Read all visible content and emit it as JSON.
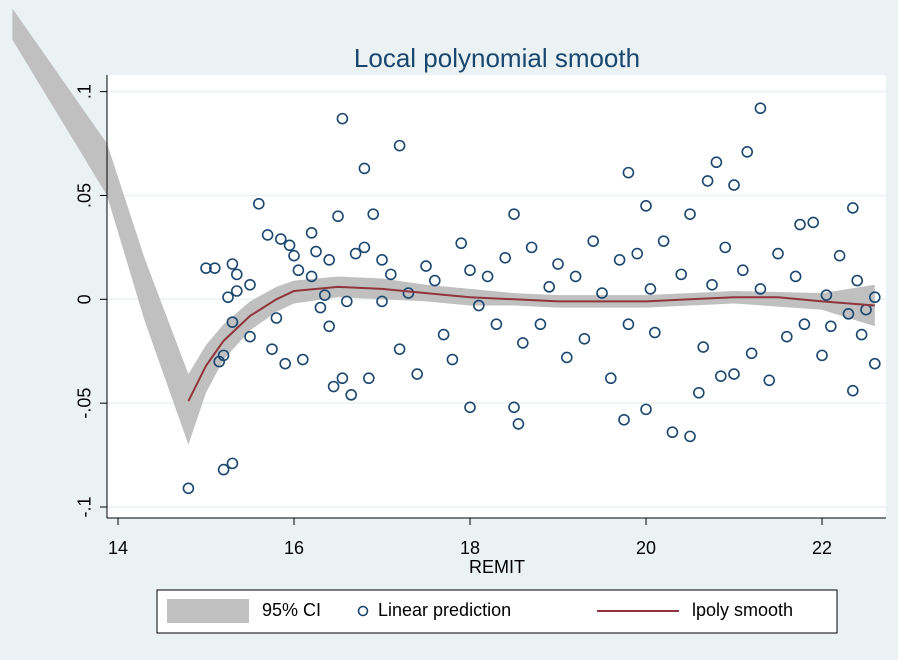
{
  "chart_data": {
    "type": "scatter",
    "title": "Local polynomial smooth",
    "x_label": "REMIT",
    "xlim": [
      13.875,
      22.727
    ],
    "xticks": [
      14,
      16,
      18,
      20,
      22
    ],
    "ylim": [
      -0.1053,
      0.108
    ],
    "yticks": [
      {
        "value": -0.1,
        "label": "-.1"
      },
      {
        "value": -0.05,
        "label": "-.05"
      },
      0,
      {
        "value": 0.05,
        "label": ".05"
      },
      {
        "value": 0.1,
        "label": ".1"
      }
    ],
    "grid": true,
    "legend": "bottom",
    "series": [
      {
        "name": "95% CI",
        "type": "area",
        "color": "#c0c0c0",
        "x": [
          12.8,
          13.875,
          14.3,
          14.8,
          15.0,
          15.2,
          15.5,
          15.8,
          16.0,
          16.5,
          17.0,
          17.5,
          18.0,
          18.5,
          19.0,
          20.0,
          21.0,
          22.0,
          22.6
        ],
        "upper": [
          0.14,
          0.075,
          0.02,
          -0.036,
          -0.022,
          -0.012,
          -0.001,
          0.006,
          0.009,
          0.011,
          0.01,
          0.007,
          0.005,
          0.003,
          0.002,
          0.002,
          0.004,
          0.003,
          0.007
        ],
        "lower": [
          0.125,
          0.05,
          -0.01,
          -0.07,
          -0.045,
          -0.029,
          -0.015,
          -0.006,
          -0.002,
          0.001,
          0.0,
          -0.001,
          -0.003,
          -0.003,
          -0.004,
          -0.004,
          -0.002,
          -0.005,
          -0.013
        ]
      },
      {
        "name": "Linear prediction",
        "type": "scatter",
        "color": "#1a476f",
        "x": [
          14.8,
          15.0,
          15.1,
          15.15,
          15.2,
          15.2,
          15.25,
          15.3,
          15.3,
          15.3,
          15.35,
          15.35,
          15.5,
          15.5,
          15.6,
          15.7,
          15.75,
          15.8,
          15.85,
          15.9,
          15.95,
          16.0,
          16.05,
          16.1,
          16.2,
          16.2,
          16.25,
          16.3,
          16.35,
          16.4,
          16.4,
          16.45,
          16.5,
          16.55,
          16.55,
          16.6,
          16.65,
          16.7,
          16.8,
          16.8,
          16.85,
          16.9,
          17.0,
          17.0,
          17.1,
          17.2,
          17.2,
          17.3,
          17.4,
          17.5,
          17.6,
          17.7,
          17.8,
          17.9,
          18.0,
          18.0,
          18.1,
          18.2,
          18.3,
          18.4,
          18.5,
          18.5,
          18.55,
          18.6,
          18.7,
          18.8,
          18.9,
          19.0,
          19.1,
          19.2,
          19.3,
          19.4,
          19.5,
          19.6,
          19.7,
          19.75,
          19.8,
          19.8,
          19.9,
          20.0,
          20.0,
          20.05,
          20.1,
          20.2,
          20.3,
          20.4,
          20.5,
          20.5,
          20.6,
          20.65,
          20.7,
          20.75,
          20.8,
          20.85,
          20.9,
          21.0,
          21.0,
          21.1,
          21.15,
          21.2,
          21.3,
          21.3,
          21.4,
          21.5,
          21.6,
          21.7,
          21.75,
          21.8,
          21.9,
          22.0,
          22.05,
          22.1,
          22.2,
          22.3,
          22.35,
          22.35,
          22.4,
          22.45,
          22.5,
          22.6,
          22.6
        ],
        "values": [
          -0.091,
          0.015,
          0.015,
          -0.03,
          -0.082,
          -0.027,
          0.001,
          -0.079,
          0.017,
          -0.011,
          0.004,
          0.012,
          -0.018,
          0.007,
          0.046,
          0.031,
          -0.024,
          -0.009,
          0.029,
          -0.031,
          0.026,
          0.021,
          0.014,
          -0.029,
          0.032,
          0.011,
          0.023,
          -0.004,
          0.002,
          -0.013,
          0.019,
          -0.042,
          0.04,
          0.087,
          -0.038,
          -0.001,
          -0.046,
          0.022,
          0.063,
          0.025,
          -0.038,
          0.041,
          0.019,
          -0.001,
          0.012,
          0.074,
          -0.024,
          0.003,
          -0.036,
          0.016,
          0.009,
          -0.017,
          -0.029,
          0.027,
          -0.052,
          0.014,
          -0.003,
          0.011,
          -0.012,
          0.02,
          -0.052,
          0.041,
          -0.06,
          -0.021,
          0.025,
          -0.012,
          0.006,
          0.017,
          -0.028,
          0.011,
          -0.019,
          0.028,
          0.003,
          -0.038,
          0.019,
          -0.058,
          0.061,
          -0.012,
          0.022,
          0.045,
          -0.053,
          0.005,
          -0.016,
          0.028,
          -0.064,
          0.012,
          -0.066,
          0.041,
          -0.045,
          -0.023,
          0.057,
          0.007,
          0.066,
          -0.037,
          0.025,
          0.055,
          -0.036,
          0.014,
          0.071,
          -0.026,
          0.092,
          0.005,
          -0.039,
          0.022,
          -0.018,
          0.011,
          0.036,
          -0.012,
          0.037,
          -0.027,
          0.002,
          -0.013,
          0.021,
          -0.007,
          0.044,
          -0.044,
          0.009,
          -0.017,
          -0.005,
          -0.031,
          0.001
        ]
      },
      {
        "name": "lpoly smooth",
        "type": "line",
        "color": "#90353b",
        "x": [
          14.8,
          15.0,
          15.2,
          15.5,
          15.8,
          16.0,
          16.5,
          17.0,
          17.5,
          18.0,
          18.5,
          19.0,
          19.5,
          20.0,
          20.5,
          21.0,
          21.5,
          22.0,
          22.6
        ],
        "values": [
          -0.049,
          -0.032,
          -0.02,
          -0.008,
          0.0,
          0.004,
          0.006,
          0.005,
          0.003,
          0.001,
          0.0,
          -0.001,
          -0.001,
          -0.001,
          0.0,
          0.001,
          0.001,
          -0.001,
          -0.003
        ]
      }
    ]
  }
}
